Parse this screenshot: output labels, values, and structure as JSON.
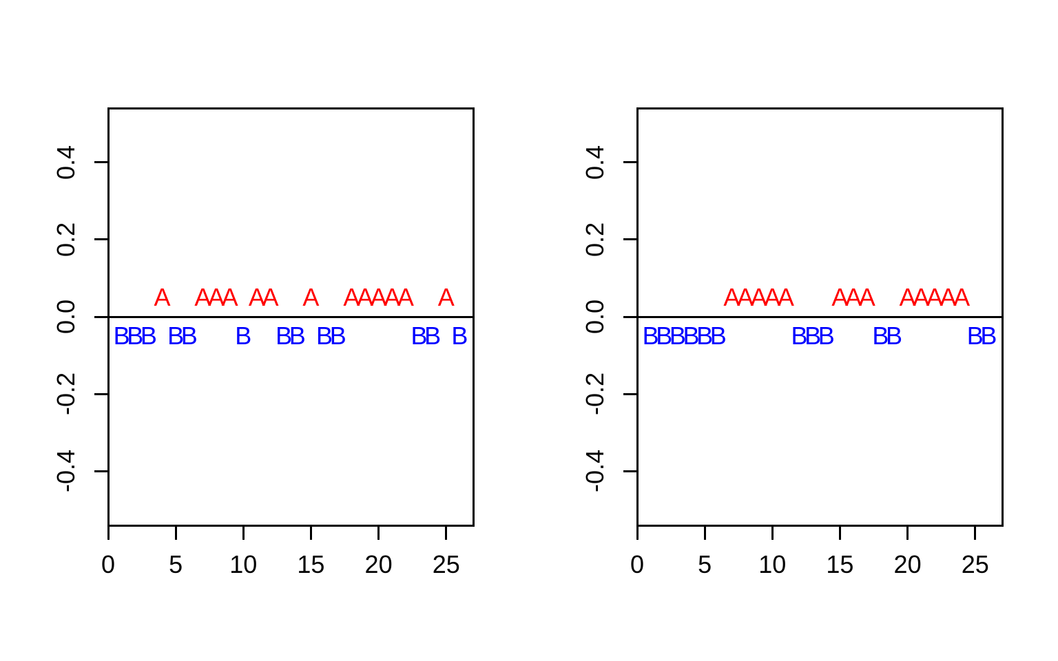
{
  "figure": {
    "background": "#FFFFFF",
    "axis_color": "#000000",
    "title": ""
  },
  "chart_data": [
    {
      "type": "scatter",
      "panel": "left",
      "title": "",
      "xlabel": "",
      "ylabel": "",
      "xlim": [
        0,
        27
      ],
      "ylim": [
        -0.54,
        0.54
      ],
      "grid": false,
      "legend": "none",
      "x_tick_values": [
        0,
        5,
        10,
        15,
        20,
        25
      ],
      "x_tick_labels": [
        "0",
        "5",
        "10",
        "15",
        "20",
        "25"
      ],
      "y_tick_values": [
        0.4,
        0.2,
        0.0,
        -0.2,
        -0.4
      ],
      "y_tick_labels": [
        "0.4",
        "0.2",
        "0.0",
        "-0.2",
        "-0.4"
      ],
      "hline_y": 0,
      "sequence": "BBBABBAAABAABBABBAAAAABBAB",
      "series": [
        {
          "name": "A",
          "marker": "A",
          "color": "#FF0000",
          "y": 0.05,
          "x": [
            4,
            7,
            8,
            9,
            11,
            12,
            15,
            18,
            19,
            20,
            21,
            22,
            25
          ]
        },
        {
          "name": "B",
          "marker": "B",
          "color": "#0000FF",
          "y": -0.05,
          "x": [
            1,
            2,
            3,
            5,
            6,
            10,
            13,
            14,
            16,
            17,
            23,
            24,
            26
          ]
        }
      ]
    },
    {
      "type": "scatter",
      "panel": "right",
      "title": "",
      "xlabel": "",
      "ylabel": "",
      "xlim": [
        0,
        27
      ],
      "ylim": [
        -0.54,
        0.54
      ],
      "grid": false,
      "legend": "none",
      "x_tick_values": [
        0,
        5,
        10,
        15,
        20,
        25
      ],
      "x_tick_labels": [
        "0",
        "5",
        "10",
        "15",
        "20",
        "25"
      ],
      "y_tick_values": [
        0.4,
        0.2,
        0.0,
        -0.2,
        -0.4
      ],
      "y_tick_labels": [
        "0.4",
        "0.2",
        "0.0",
        "-0.2",
        "-0.4"
      ],
      "hline_y": 0,
      "sequence": "BBBBBBAAAAABBBAAABBAAAAABB",
      "series": [
        {
          "name": "A",
          "marker": "A",
          "color": "#FF0000",
          "y": 0.05,
          "x": [
            7,
            8,
            9,
            10,
            11,
            15,
            16,
            17,
            20,
            21,
            22,
            23,
            24
          ]
        },
        {
          "name": "B",
          "marker": "B",
          "color": "#0000FF",
          "y": -0.05,
          "x": [
            1,
            2,
            3,
            4,
            5,
            6,
            12,
            13,
            14,
            18,
            19,
            25,
            26
          ]
        }
      ]
    }
  ]
}
